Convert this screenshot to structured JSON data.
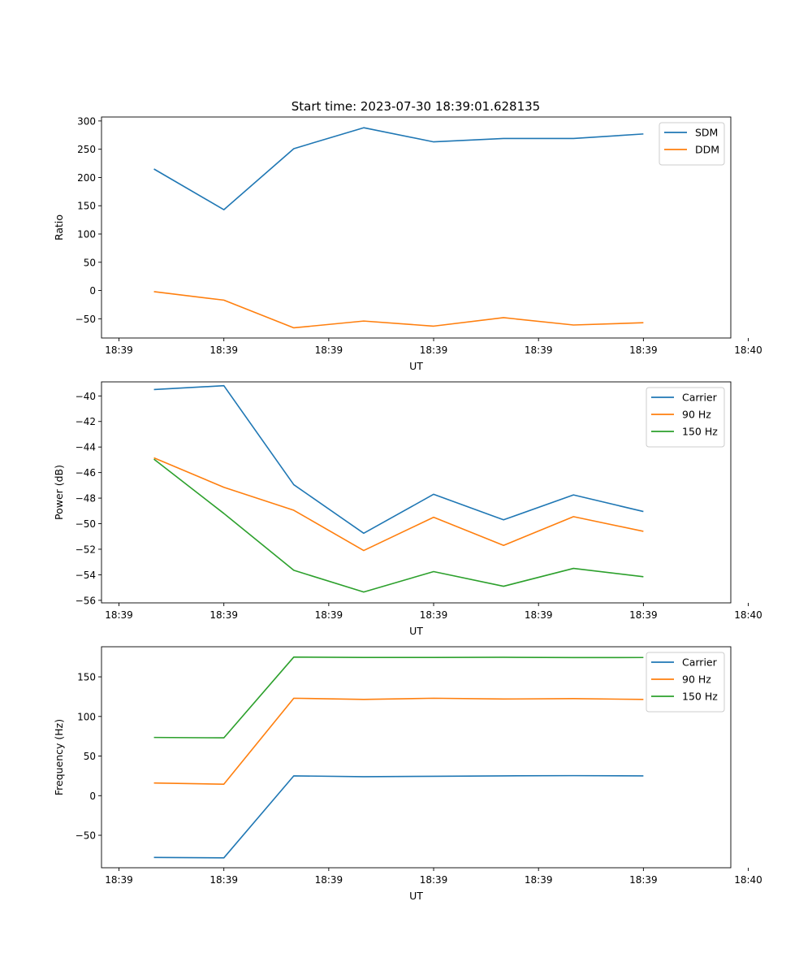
{
  "figure_title": "Start time: 2023-07-30 18:39:01.628135",
  "chart_data": [
    {
      "type": "line",
      "title": "Start time: 2023-07-30 18:39:01.628135",
      "xlabel": "UT",
      "ylabel": "Ratio",
      "x": [
        1,
        2,
        3,
        4,
        5,
        6,
        7,
        8
      ],
      "xlim": [
        0.25,
        9.25
      ],
      "xticks": [
        0.5,
        2,
        3.5,
        5,
        6.5,
        8,
        9.5
      ],
      "xtick_labels": [
        "18:39",
        "18:39",
        "18:39",
        "18:39",
        "18:39",
        "18:39",
        "18:40"
      ],
      "ylim": [
        -84,
        307
      ],
      "yticks": [
        -50,
        0,
        50,
        100,
        150,
        200,
        250,
        300
      ],
      "legend": "top-right",
      "series": [
        {
          "name": "SDM",
          "color": "#1f77b4",
          "values": [
            215,
            143,
            251,
            288,
            263,
            269,
            269,
            277
          ]
        },
        {
          "name": "DDM",
          "color": "#ff7f0e",
          "values": [
            -2,
            -17,
            -66,
            -54,
            -63,
            -48,
            -61,
            -57
          ]
        }
      ]
    },
    {
      "type": "line",
      "title": "",
      "xlabel": "UT",
      "ylabel": "Power (dB)",
      "x": [
        1,
        2,
        3,
        4,
        5,
        6,
        7,
        8
      ],
      "xlim": [
        0.25,
        9.25
      ],
      "xticks": [
        0.5,
        2,
        3.5,
        5,
        6.5,
        8,
        9.5
      ],
      "xtick_labels": [
        "18:39",
        "18:39",
        "18:39",
        "18:39",
        "18:39",
        "18:39",
        "18:40"
      ],
      "ylim": [
        -56.2,
        -38.9
      ],
      "yticks": [
        -56,
        -54,
        -52,
        -50,
        -48,
        -46,
        -44,
        -42,
        -40
      ],
      "legend": "top-right",
      "series": [
        {
          "name": "Carrier",
          "color": "#1f77b4",
          "values": [
            -39.5,
            -39.2,
            -46.95,
            -50.75,
            -47.7,
            -49.7,
            -47.75,
            -49.05
          ]
        },
        {
          "name": "90 Hz",
          "color": "#ff7f0e",
          "values": [
            -44.85,
            -47.15,
            -48.95,
            -52.1,
            -49.5,
            -51.7,
            -49.45,
            -50.6
          ]
        },
        {
          "name": "150 Hz",
          "color": "#2ca02c",
          "values": [
            -44.95,
            -49.2,
            -53.65,
            -55.35,
            -53.75,
            -54.9,
            -53.5,
            -54.15
          ]
        }
      ]
    },
    {
      "type": "line",
      "title": "",
      "xlabel": "UT",
      "ylabel": "Frequency (Hz)",
      "x": [
        1,
        2,
        3,
        4,
        5,
        6,
        7,
        8
      ],
      "xlim": [
        0.25,
        9.25
      ],
      "xticks": [
        0.5,
        2,
        3.5,
        5,
        6.5,
        8,
        9.5
      ],
      "xtick_labels": [
        "18:39",
        "18:39",
        "18:39",
        "18:39",
        "18:39",
        "18:39",
        "18:40"
      ],
      "ylim": [
        -91,
        188
      ],
      "yticks": [
        -50,
        0,
        50,
        100,
        150
      ],
      "legend": "top-right",
      "series": [
        {
          "name": "Carrier",
          "color": "#1f77b4",
          "values": [
            -78,
            -78.5,
            25,
            24,
            24.5,
            25,
            25.3,
            25
          ]
        },
        {
          "name": "90 Hz",
          "color": "#ff7f0e",
          "values": [
            16,
            14.5,
            123,
            121.5,
            123,
            122,
            122.5,
            121.5
          ]
        },
        {
          "name": "150 Hz",
          "color": "#2ca02c",
          "values": [
            73.5,
            73,
            175,
            174.5,
            174.5,
            174.7,
            174.3,
            174.4
          ]
        }
      ]
    }
  ]
}
